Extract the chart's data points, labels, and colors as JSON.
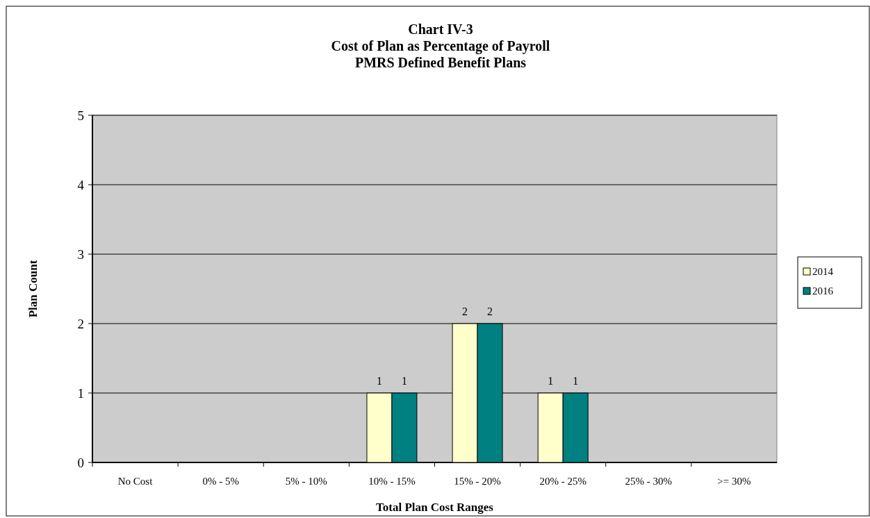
{
  "chart_data": {
    "type": "bar",
    "title": "Chart IV-3\nCost of Plan as Percentage of Payroll\nPMRS Defined Benefit Plans",
    "xlabel": "Total Plan Cost Ranges",
    "ylabel": "Plan Count",
    "categories": [
      "No Cost",
      "0% -  5%",
      "5% - 10%",
      "10% - 15%",
      "15% - 20%",
      "20% - 25%",
      "25% - 30%",
      ">= 30%"
    ],
    "series": [
      {
        "name": "2014",
        "color": "#ffffcc",
        "values": [
          0,
          0,
          0,
          1,
          2,
          1,
          0,
          0
        ],
        "value_labels": [
          null,
          null,
          null,
          "1",
          "2",
          "1",
          null,
          null
        ]
      },
      {
        "name": "2016",
        "color": "#008080",
        "values": [
          0,
          0,
          0,
          1,
          2,
          1,
          0,
          0
        ],
        "value_labels": [
          null,
          null,
          null,
          "1",
          "2",
          "1",
          null,
          null
        ]
      }
    ],
    "ylim": [
      0,
      5
    ],
    "yticks": [
      0,
      1,
      2,
      3,
      4,
      5
    ],
    "grid": "y",
    "legend": "right"
  }
}
